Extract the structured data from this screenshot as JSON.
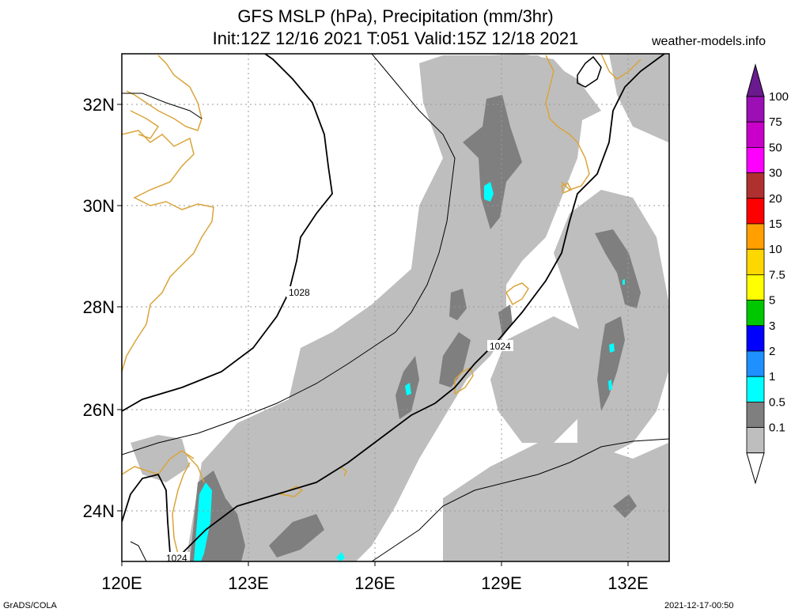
{
  "title_line1": "GFS MSLP (hPa), Precipitation (mm/3hr)",
  "title_line2": "Init:12Z 12/16 2021 T:051 Valid:15Z 12/18 2021",
  "site": "weather-models.info",
  "footer_left": "GrADS/COLA",
  "footer_right": "2021-12-17-00:50",
  "axes": {
    "x_ticks": [
      "120E",
      "123E",
      "126E",
      "129E",
      "132E"
    ],
    "y_ticks": [
      "32N",
      "30N",
      "28N",
      "26N",
      "24N"
    ]
  },
  "colorbar": {
    "labels": [
      "100",
      "75",
      "50",
      "30",
      "20",
      "15",
      "10",
      "7.5",
      "5",
      "3",
      "2",
      "1",
      "0.5",
      "0.1"
    ],
    "colors": [
      "#9b0fb5",
      "#c900c9",
      "#ff00ff",
      "#b03030",
      "#ff0000",
      "#ff9f00",
      "#ffd700",
      "#ffff00",
      "#00c800",
      "#0000ff",
      "#1e90ff",
      "#00ffff",
      "#7f7f7f",
      "#bebebe"
    ],
    "top_arrow_color": "#6a1a8f"
  },
  "isobars": {
    "label_1028": "1028",
    "label_1024_a": "1024",
    "label_1024_b": "1024"
  },
  "colors": {
    "coast": "#d9a53a",
    "precip_light": "#bebebe",
    "precip_mid": "#7f7f7f",
    "precip_high": "#00ffff",
    "grid": "#999999"
  }
}
